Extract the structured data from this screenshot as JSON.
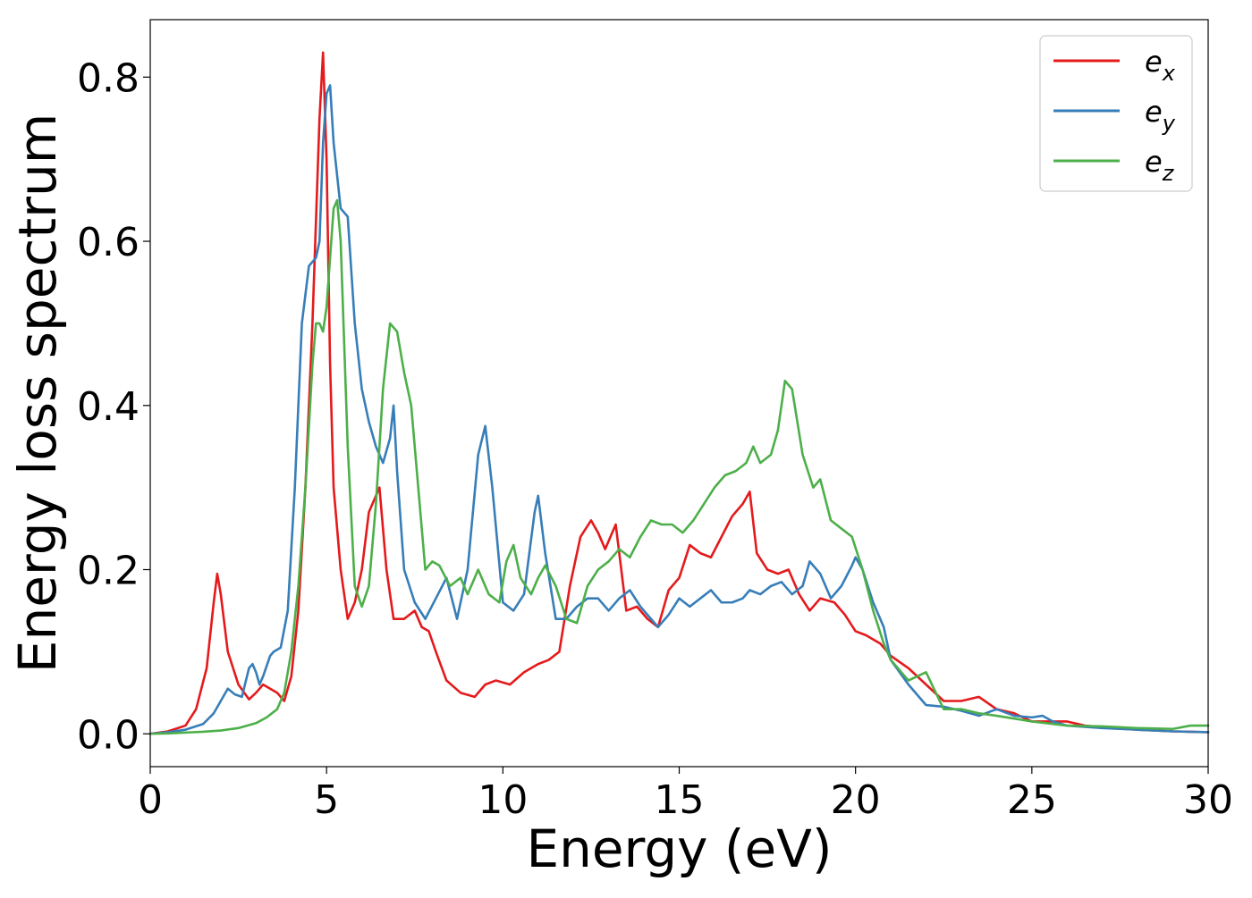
{
  "chart_data": {
    "type": "line",
    "title": "",
    "xlabel": "Energy (eV)",
    "ylabel": "Energy loss spectrum",
    "xlim": [
      0,
      30
    ],
    "ylim": [
      -0.04,
      0.87
    ],
    "xticks": [
      0,
      5,
      10,
      15,
      20,
      25,
      30
    ],
    "xtick_labels": [
      "0",
      "5",
      "10",
      "15",
      "20",
      "25",
      "30"
    ],
    "yticks": [
      0.0,
      0.2,
      0.4,
      0.6,
      0.8
    ],
    "ytick_labels": [
      "0.0",
      "0.2",
      "0.4",
      "0.6",
      "0.8"
    ],
    "grid": false,
    "legend_position": "top-right",
    "series": [
      {
        "name": "e_x",
        "label_base": "e",
        "label_sub": "x",
        "color": "#e41a1c",
        "x": [
          0,
          0.5,
          1.0,
          1.3,
          1.6,
          1.8,
          1.9,
          2.0,
          2.2,
          2.5,
          2.8,
          3.0,
          3.2,
          3.4,
          3.6,
          3.8,
          4.0,
          4.2,
          4.4,
          4.6,
          4.8,
          4.9,
          5.0,
          5.1,
          5.2,
          5.4,
          5.6,
          5.8,
          6.0,
          6.2,
          6.5,
          6.7,
          6.9,
          7.2,
          7.5,
          7.7,
          7.9,
          8.1,
          8.4,
          8.8,
          9.2,
          9.5,
          9.8,
          10.2,
          10.6,
          11.0,
          11.3,
          11.6,
          11.9,
          12.2,
          12.5,
          12.7,
          12.9,
          13.2,
          13.5,
          13.8,
          14.1,
          14.4,
          14.7,
          15.0,
          15.3,
          15.6,
          15.9,
          16.2,
          16.5,
          16.8,
          17.0,
          17.2,
          17.5,
          17.8,
          18.1,
          18.4,
          18.7,
          19.0,
          19.4,
          19.7,
          20.0,
          20.3,
          20.7,
          21.0,
          21.5,
          22.0,
          22.5,
          23.0,
          23.5,
          24.0,
          24.5,
          25.0,
          25.5,
          26.0,
          26.5,
          27.0,
          28.0,
          29.0,
          30.0
        ],
        "y": [
          0,
          0.003,
          0.01,
          0.03,
          0.08,
          0.16,
          0.195,
          0.17,
          0.1,
          0.06,
          0.042,
          0.05,
          0.06,
          0.055,
          0.05,
          0.04,
          0.07,
          0.15,
          0.3,
          0.5,
          0.75,
          0.83,
          0.7,
          0.45,
          0.3,
          0.2,
          0.14,
          0.16,
          0.2,
          0.27,
          0.3,
          0.2,
          0.14,
          0.14,
          0.15,
          0.13,
          0.125,
          0.1,
          0.065,
          0.05,
          0.045,
          0.06,
          0.065,
          0.06,
          0.075,
          0.085,
          0.09,
          0.1,
          0.18,
          0.24,
          0.26,
          0.245,
          0.225,
          0.255,
          0.15,
          0.155,
          0.14,
          0.13,
          0.175,
          0.19,
          0.23,
          0.22,
          0.215,
          0.24,
          0.265,
          0.28,
          0.295,
          0.22,
          0.2,
          0.195,
          0.2,
          0.17,
          0.15,
          0.165,
          0.16,
          0.145,
          0.125,
          0.12,
          0.11,
          0.095,
          0.08,
          0.06,
          0.04,
          0.04,
          0.045,
          0.03,
          0.025,
          0.015,
          0.015,
          0.015,
          0.01,
          0.008,
          0.005,
          0.003,
          0.002
        ]
      },
      {
        "name": "e_y",
        "label_base": "e",
        "label_sub": "y",
        "color": "#377eb8",
        "x": [
          0,
          0.5,
          1.0,
          1.5,
          1.8,
          2.0,
          2.2,
          2.4,
          2.6,
          2.8,
          2.9,
          3.0,
          3.1,
          3.2,
          3.4,
          3.5,
          3.7,
          3.9,
          4.1,
          4.3,
          4.5,
          4.7,
          4.8,
          4.9,
          5.0,
          5.1,
          5.2,
          5.4,
          5.6,
          5.8,
          6.0,
          6.2,
          6.4,
          6.6,
          6.8,
          6.9,
          7.0,
          7.2,
          7.5,
          7.8,
          8.1,
          8.4,
          8.7,
          9.0,
          9.3,
          9.5,
          9.7,
          10.0,
          10.3,
          10.6,
          10.9,
          11.0,
          11.2,
          11.5,
          11.8,
          12.1,
          12.4,
          12.7,
          13.0,
          13.3,
          13.6,
          13.9,
          14.2,
          14.4,
          14.7,
          15.0,
          15.3,
          15.6,
          15.9,
          16.2,
          16.5,
          16.8,
          17.0,
          17.3,
          17.6,
          17.9,
          18.2,
          18.5,
          18.7,
          19.0,
          19.3,
          19.6,
          19.9,
          20.0,
          20.2,
          20.5,
          20.8,
          21.0,
          21.5,
          22.0,
          22.5,
          23.0,
          23.5,
          24.0,
          24.5,
          25.0,
          25.3,
          25.6,
          26.0,
          27.0,
          28.0,
          29.0,
          30.0
        ],
        "y": [
          0,
          0.002,
          0.005,
          0.012,
          0.025,
          0.04,
          0.055,
          0.048,
          0.045,
          0.08,
          0.085,
          0.075,
          0.06,
          0.07,
          0.095,
          0.1,
          0.105,
          0.15,
          0.3,
          0.5,
          0.57,
          0.58,
          0.6,
          0.72,
          0.78,
          0.79,
          0.72,
          0.64,
          0.63,
          0.5,
          0.42,
          0.38,
          0.35,
          0.33,
          0.36,
          0.4,
          0.32,
          0.2,
          0.16,
          0.14,
          0.165,
          0.19,
          0.14,
          0.2,
          0.34,
          0.375,
          0.3,
          0.16,
          0.15,
          0.17,
          0.27,
          0.29,
          0.22,
          0.14,
          0.14,
          0.155,
          0.165,
          0.165,
          0.15,
          0.165,
          0.175,
          0.155,
          0.14,
          0.13,
          0.145,
          0.165,
          0.155,
          0.165,
          0.175,
          0.16,
          0.16,
          0.165,
          0.175,
          0.17,
          0.18,
          0.185,
          0.17,
          0.18,
          0.21,
          0.195,
          0.165,
          0.18,
          0.205,
          0.215,
          0.2,
          0.16,
          0.13,
          0.09,
          0.06,
          0.035,
          0.033,
          0.028,
          0.022,
          0.03,
          0.022,
          0.02,
          0.022,
          0.015,
          0.01,
          0.007,
          0.005,
          0.003,
          0.002
        ]
      },
      {
        "name": "e_z",
        "label_base": "e",
        "label_sub": "z",
        "color": "#4daf4a",
        "x": [
          0,
          0.5,
          1.0,
          1.5,
          2.0,
          2.5,
          3.0,
          3.3,
          3.6,
          3.8,
          4.0,
          4.2,
          4.4,
          4.6,
          4.7,
          4.8,
          4.9,
          5.0,
          5.1,
          5.2,
          5.3,
          5.4,
          5.6,
          5.8,
          6.0,
          6.2,
          6.4,
          6.6,
          6.8,
          7.0,
          7.2,
          7.4,
          7.6,
          7.8,
          8.0,
          8.2,
          8.5,
          8.8,
          9.0,
          9.3,
          9.6,
          9.9,
          10.1,
          10.3,
          10.5,
          10.8,
          11.0,
          11.2,
          11.5,
          11.8,
          12.1,
          12.4,
          12.7,
          13.0,
          13.3,
          13.6,
          13.9,
          14.2,
          14.5,
          14.8,
          15.1,
          15.4,
          15.7,
          16.0,
          16.3,
          16.6,
          16.9,
          17.1,
          17.3,
          17.6,
          17.8,
          18.0,
          18.2,
          18.5,
          18.8,
          19.0,
          19.3,
          19.6,
          19.9,
          20.2,
          20.5,
          20.8,
          21.0,
          21.5,
          22.0,
          22.5,
          23.0,
          23.5,
          24.0,
          25.0,
          26.0,
          27.0,
          28.0,
          29.0,
          29.5,
          30.0
        ],
        "y": [
          0,
          0.0005,
          0.0015,
          0.0025,
          0.004,
          0.007,
          0.013,
          0.02,
          0.03,
          0.05,
          0.1,
          0.18,
          0.3,
          0.45,
          0.5,
          0.5,
          0.49,
          0.52,
          0.58,
          0.64,
          0.65,
          0.6,
          0.35,
          0.18,
          0.155,
          0.18,
          0.28,
          0.42,
          0.5,
          0.49,
          0.44,
          0.4,
          0.3,
          0.2,
          0.21,
          0.205,
          0.18,
          0.19,
          0.17,
          0.2,
          0.17,
          0.16,
          0.21,
          0.23,
          0.19,
          0.17,
          0.19,
          0.205,
          0.18,
          0.14,
          0.135,
          0.18,
          0.2,
          0.21,
          0.225,
          0.215,
          0.24,
          0.26,
          0.255,
          0.255,
          0.245,
          0.26,
          0.28,
          0.3,
          0.315,
          0.32,
          0.33,
          0.35,
          0.33,
          0.34,
          0.37,
          0.43,
          0.42,
          0.34,
          0.3,
          0.31,
          0.26,
          0.25,
          0.24,
          0.2,
          0.15,
          0.11,
          0.09,
          0.065,
          0.075,
          0.03,
          0.03,
          0.025,
          0.022,
          0.015,
          0.01,
          0.009,
          0.007,
          0.006,
          0.01,
          0.01
        ]
      }
    ]
  }
}
